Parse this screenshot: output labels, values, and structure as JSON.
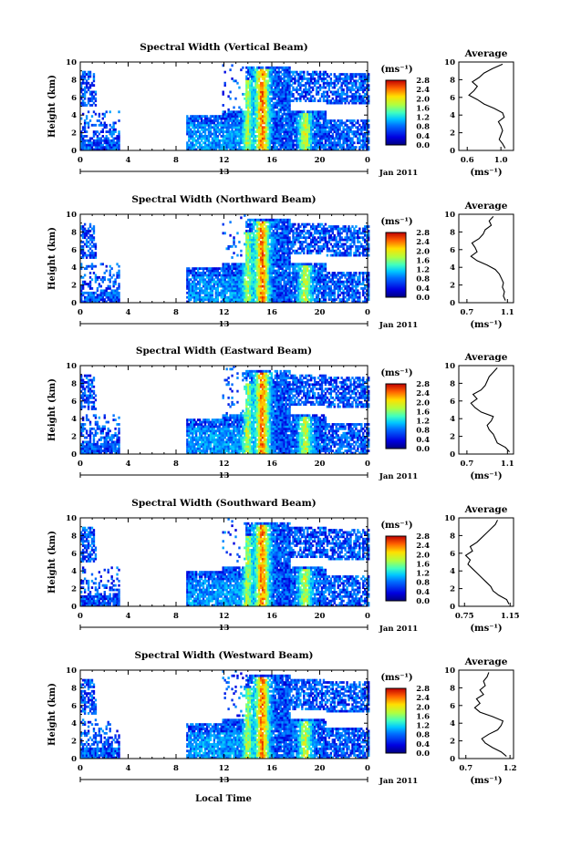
{
  "figure": {
    "xlabel": "Local Time",
    "date_label": "Jan 2011",
    "date_tick": "13",
    "ylabel": "Height (km)",
    "colorbar_unit": "(ms⁻¹)",
    "profile_title": "Average",
    "profile_xlabel": "(ms⁻¹)"
  },
  "chart_data": [
    {
      "type": "heatmap",
      "title": "Spectral Width (Vertical Beam)",
      "xlabel": "Local Time",
      "ylabel": "Height (km)",
      "x_ticks": [
        "0",
        "4",
        "8",
        "12",
        "16",
        "20",
        "0"
      ],
      "xlim": [
        0,
        24
      ],
      "y_ticks": [
        "0",
        "2",
        "4",
        "6",
        "8",
        "10"
      ],
      "ylim": [
        0,
        10
      ],
      "colorbar": {
        "label": "(ms⁻¹)",
        "ticks": [
          "0.0",
          "0.4",
          "0.8",
          "1.2",
          "1.6",
          "2.0",
          "2.4",
          "2.8"
        ],
        "range": [
          0,
          2.8
        ]
      },
      "profile": {
        "title": "Average",
        "xlabel": "(ms⁻¹)",
        "x_ticks": [
          "0.6",
          "1.0"
        ],
        "xlim": [
          0.5,
          1.15
        ],
        "heights": [
          0.25,
          0.75,
          1.25,
          1.75,
          2.25,
          2.75,
          3.25,
          3.75,
          4.25,
          4.75,
          5.25,
          5.75,
          6.25,
          6.75,
          7.25,
          7.75,
          8.25,
          8.75,
          9.25,
          9.75
        ],
        "values": [
          1.05,
          1.02,
          0.98,
          1.0,
          1.02,
          1.0,
          0.97,
          1.04,
          1.02,
          0.92,
          0.8,
          0.72,
          0.62,
          0.68,
          0.72,
          0.66,
          0.74,
          0.8,
          0.9,
          1.02
        ]
      }
    },
    {
      "type": "heatmap",
      "title": "Spectral Width (Northward Beam)",
      "xlabel": "Local Time",
      "ylabel": "Height (km)",
      "x_ticks": [
        "0",
        "4",
        "8",
        "12",
        "16",
        "20",
        "0"
      ],
      "xlim": [
        0,
        24
      ],
      "y_ticks": [
        "0",
        "2",
        "4",
        "6",
        "8",
        "10"
      ],
      "ylim": [
        0,
        10
      ],
      "colorbar": {
        "label": "(ms⁻¹)",
        "ticks": [
          "0.0",
          "0.4",
          "0.8",
          "1.2",
          "1.6",
          "2.0",
          "2.4",
          "2.8"
        ],
        "range": [
          0,
          2.8
        ]
      },
      "profile": {
        "title": "Average",
        "xlabel": "(ms⁻¹)",
        "x_ticks": [
          "0.7",
          "1.1"
        ],
        "xlim": [
          0.62,
          1.16
        ],
        "heights": [
          0.25,
          0.75,
          1.25,
          1.75,
          2.25,
          2.75,
          3.25,
          3.75,
          4.25,
          4.75,
          5.25,
          5.75,
          6.25,
          6.75,
          7.25,
          7.75,
          8.25,
          8.75,
          9.25,
          9.75
        ],
        "values": [
          1.08,
          1.06,
          1.07,
          1.05,
          1.06,
          1.04,
          1.02,
          0.98,
          0.9,
          0.8,
          0.74,
          0.8,
          0.78,
          0.75,
          0.82,
          0.86,
          0.88,
          0.94,
          0.92,
          0.96
        ]
      }
    },
    {
      "type": "heatmap",
      "title": "Spectral Width (Eastward Beam)",
      "xlabel": "Local Time",
      "ylabel": "Height (km)",
      "x_ticks": [
        "0",
        "4",
        "8",
        "12",
        "16",
        "20",
        "0"
      ],
      "xlim": [
        0,
        24
      ],
      "y_ticks": [
        "0",
        "2",
        "4",
        "6",
        "8",
        "10"
      ],
      "ylim": [
        0,
        10
      ],
      "colorbar": {
        "label": "(ms⁻¹)",
        "ticks": [
          "0.0",
          "0.4",
          "0.8",
          "1.2",
          "1.6",
          "2.0",
          "2.4",
          "2.8"
        ],
        "range": [
          0,
          2.8
        ]
      },
      "profile": {
        "title": "Average",
        "xlabel": "(ms⁻¹)",
        "x_ticks": [
          "0.7",
          "1.1"
        ],
        "xlim": [
          0.62,
          1.16
        ],
        "heights": [
          0.25,
          0.75,
          1.25,
          1.75,
          2.25,
          2.75,
          3.25,
          3.75,
          4.25,
          4.75,
          5.25,
          5.75,
          6.25,
          6.75,
          7.25,
          7.75,
          8.25,
          8.75,
          9.25,
          9.75
        ],
        "values": [
          1.12,
          1.08,
          1.0,
          0.98,
          0.96,
          0.92,
          0.9,
          0.94,
          0.96,
          0.84,
          0.78,
          0.74,
          0.8,
          0.76,
          0.84,
          0.88,
          0.9,
          0.92,
          0.96,
          1.0
        ]
      }
    },
    {
      "type": "heatmap",
      "title": "Spectral Width (Southward Beam)",
      "xlabel": "Local Time",
      "ylabel": "Height (km)",
      "x_ticks": [
        "0",
        "4",
        "8",
        "12",
        "16",
        "20",
        "0"
      ],
      "xlim": [
        0,
        24
      ],
      "y_ticks": [
        "0",
        "2",
        "4",
        "6",
        "8",
        "10"
      ],
      "ylim": [
        0,
        10
      ],
      "colorbar": {
        "label": "(ms⁻¹)",
        "ticks": [
          "0.0",
          "0.4",
          "0.8",
          "1.2",
          "1.6",
          "2.0",
          "2.4",
          "2.8"
        ],
        "range": [
          0,
          2.8
        ]
      },
      "profile": {
        "title": "Average",
        "xlabel": "(ms⁻¹)",
        "x_ticks": [
          "0.75",
          "1.15"
        ],
        "xlim": [
          0.7,
          1.18
        ],
        "heights": [
          0.25,
          0.75,
          1.25,
          1.75,
          2.25,
          2.75,
          3.25,
          3.75,
          4.25,
          4.75,
          5.25,
          5.75,
          6.25,
          6.75,
          7.25,
          7.75,
          8.25,
          8.75,
          9.25,
          9.75
        ],
        "values": [
          1.14,
          1.12,
          1.05,
          1.0,
          0.98,
          0.94,
          0.9,
          0.86,
          0.82,
          0.78,
          0.8,
          0.76,
          0.82,
          0.8,
          0.86,
          0.9,
          0.94,
          0.98,
          1.02,
          1.04
        ]
      }
    },
    {
      "type": "heatmap",
      "title": "Spectral Width (Westward Beam)",
      "xlabel": "Local Time",
      "ylabel": "Height (km)",
      "x_ticks": [
        "0",
        "4",
        "8",
        "12",
        "16",
        "20",
        "0"
      ],
      "xlim": [
        0,
        24
      ],
      "y_ticks": [
        "0",
        "2",
        "4",
        "6",
        "8",
        "10"
      ],
      "ylim": [
        0,
        10
      ],
      "colorbar": {
        "label": "(ms⁻¹)",
        "ticks": [
          "0.0",
          "0.4",
          "0.8",
          "1.2",
          "1.6",
          "2.0",
          "2.4",
          "2.8"
        ],
        "range": [
          0,
          2.8
        ]
      },
      "profile": {
        "title": "Average",
        "xlabel": "(ms⁻¹)",
        "x_ticks": [
          "0.7",
          "1.2"
        ],
        "xlim": [
          0.62,
          1.24
        ],
        "heights": [
          0.25,
          0.75,
          1.25,
          1.75,
          2.25,
          2.75,
          3.25,
          3.75,
          4.25,
          4.75,
          5.25,
          5.75,
          6.25,
          6.75,
          7.25,
          7.75,
          8.25,
          8.75,
          9.25,
          9.75
        ],
        "values": [
          1.16,
          1.1,
          1.0,
          0.92,
          0.88,
          0.96,
          1.06,
          1.1,
          1.12,
          1.0,
          0.86,
          0.8,
          0.86,
          0.82,
          0.9,
          0.86,
          0.92,
          0.9,
          0.94,
          0.96
        ]
      }
    }
  ]
}
